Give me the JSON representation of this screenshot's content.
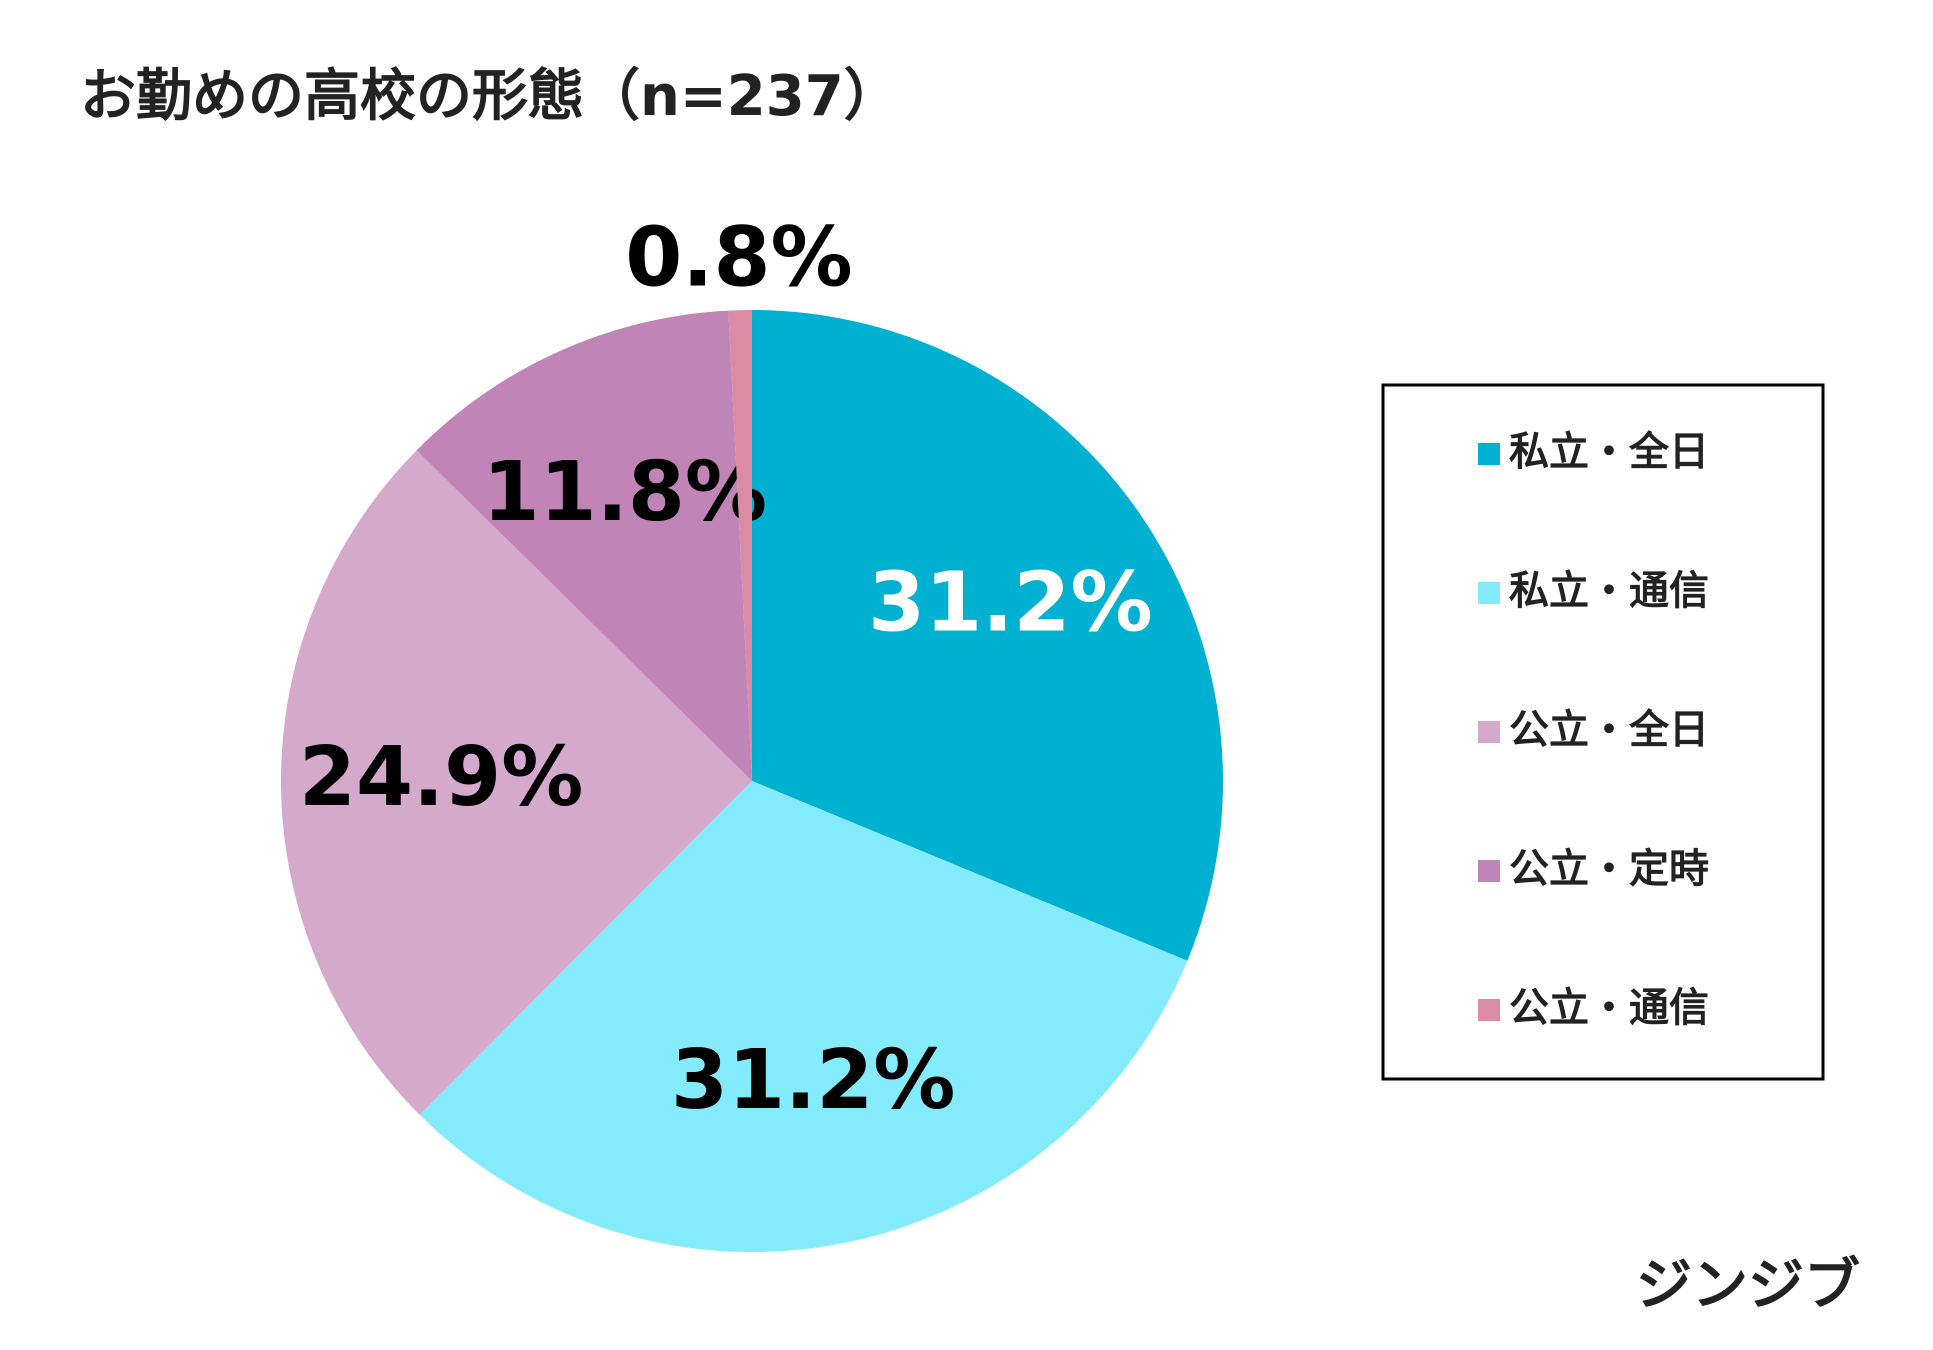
{
  "chart_data": {
    "type": "pie",
    "title": "お勤めの高校の形態（n=237）",
    "categories": [
      "私立・全日",
      "私立・通信",
      "公立・全日",
      "公立・定時",
      "公立・通信"
    ],
    "values": [
      31.2,
      31.2,
      24.9,
      11.8,
      0.8
    ],
    "value_labels": [
      "31.2%",
      "31.2%",
      "24.9%",
      "11.8%",
      "0.8%"
    ],
    "colors": [
      "#00b0d0",
      "#84ebfd",
      "#d4a9cc",
      "#c085b6",
      "#d98ca4"
    ],
    "label_colors": [
      "#ffffff",
      "#000000",
      "#000000",
      "#000000",
      "#000000"
    ],
    "legend": "right"
  },
  "brand": "ジンジブ"
}
